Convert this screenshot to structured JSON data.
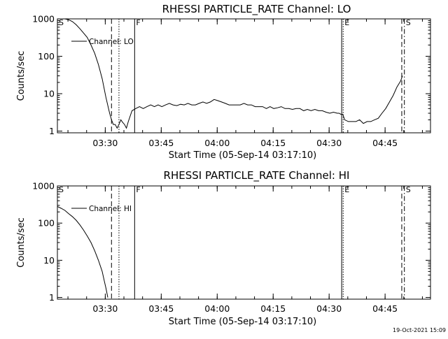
{
  "footer": {
    "timestamp": "19-Oct-2021 15:09"
  },
  "chart_data": [
    {
      "type": "line",
      "title": "RHESSI PARTICLE_RATE Channel: LO",
      "xlabel": "Start Time (05-Sep-14 03:17:10)",
      "ylabel": "Counts/sec",
      "yscale": "log",
      "ylim": [
        0.9,
        1000
      ],
      "xlim_minutes": [
        0,
        100
      ],
      "xticks": [
        "03:30",
        "03:45",
        "04:00",
        "04:15",
        "04:30",
        "04:45"
      ],
      "xtick_minutes": [
        12.83,
        27.83,
        42.83,
        57.83,
        72.83,
        87.83
      ],
      "yticks": [
        "1",
        "10",
        "100",
        "1000"
      ],
      "yticks_values": [
        1,
        10,
        100,
        1000
      ],
      "legend": {
        "label": "Channel: LO",
        "position": "top-left"
      },
      "markers": [
        {
          "label": "S",
          "x_minutes": 0,
          "style": "solid"
        },
        {
          "label": "",
          "x_minutes": 14.5,
          "style": "dashed"
        },
        {
          "label": "",
          "x_minutes": 16.5,
          "style": "dotted"
        },
        {
          "label": "F",
          "x_minutes": 20.7,
          "style": "solid"
        },
        {
          "label": "",
          "x_minutes": 76.2,
          "style": "solid"
        },
        {
          "label": "E",
          "x_minutes": 76.6,
          "style": "dotted"
        },
        {
          "label": "",
          "x_minutes": 92.3,
          "style": "dashed"
        },
        {
          "label": "S",
          "x_minutes": 93.0,
          "style": "dashdot"
        }
      ],
      "series": [
        {
          "name": "Channel: LO",
          "x": [
            0,
            2,
            3,
            4,
            5,
            6,
            7,
            8,
            9,
            10,
            11,
            12,
            13,
            14,
            14.5,
            15,
            15.5,
            16,
            16.5,
            17,
            17.5,
            18,
            18.5,
            19,
            20,
            21,
            22,
            23,
            24,
            25,
            26,
            27,
            28,
            29,
            30,
            31,
            32,
            33,
            34,
            35,
            36,
            37,
            38,
            39,
            40,
            41,
            42,
            43,
            44,
            45,
            46,
            47,
            48,
            49,
            50,
            51,
            52,
            53,
            54,
            55,
            56,
            57,
            58,
            59,
            60,
            61,
            62,
            63,
            64,
            65,
            66,
            67,
            68,
            69,
            70,
            71,
            72,
            73,
            74,
            75,
            75.5,
            76,
            76.5,
            77,
            78,
            79,
            80,
            81,
            82,
            83,
            84,
            85,
            86,
            87,
            88,
            89,
            90,
            91,
            92,
            92.5
          ],
          "y": [
            1000,
            1000,
            950,
            850,
            700,
            550,
            420,
            320,
            200,
            120,
            60,
            25,
            8,
            3,
            2,
            1.5,
            1.5,
            1.2,
            1.5,
            2,
            1.7,
            1.5,
            1.2,
            1.8,
            3.5,
            4,
            4.5,
            4,
            4.5,
            5,
            4.5,
            5,
            4.5,
            5,
            5.5,
            5,
            4.8,
            5.2,
            5,
            5.5,
            5,
            5,
            5.5,
            6,
            5.5,
            6,
            7,
            6.5,
            6,
            5.5,
            5,
            5,
            5,
            5,
            5.5,
            5,
            5,
            4.5,
            4.5,
            4.5,
            4,
            4.5,
            4,
            4.2,
            4.5,
            4,
            4,
            3.8,
            4,
            4,
            3.5,
            3.8,
            3.5,
            3.8,
            3.5,
            3.5,
            3.2,
            3,
            3.2,
            3,
            3,
            2.8,
            2.8,
            2,
            1.8,
            1.8,
            1.8,
            2,
            1.6,
            1.8,
            1.8,
            2,
            2.2,
            3,
            4,
            6,
            9,
            15,
            22,
            30
          ]
        }
      ]
    },
    {
      "type": "line",
      "title": "RHESSI PARTICLE_RATE Channel: HI",
      "xlabel": "Start Time (05-Sep-14 03:17:10)",
      "ylabel": "Counts/sec",
      "yscale": "log",
      "ylim": [
        0.9,
        1000
      ],
      "xlim_minutes": [
        0,
        100
      ],
      "xticks": [
        "03:30",
        "03:45",
        "04:00",
        "04:15",
        "04:30",
        "04:45"
      ],
      "xtick_minutes": [
        12.83,
        27.83,
        42.83,
        57.83,
        72.83,
        87.83
      ],
      "yticks": [
        "1",
        "10",
        "100",
        "1000"
      ],
      "yticks_values": [
        1,
        10,
        100,
        1000
      ],
      "legend": {
        "label": "Channel: HI",
        "position": "top-left"
      },
      "markers": [
        {
          "label": "S",
          "x_minutes": 0,
          "style": "solid"
        },
        {
          "label": "",
          "x_minutes": 14.5,
          "style": "dashed"
        },
        {
          "label": "",
          "x_minutes": 16.5,
          "style": "dotted"
        },
        {
          "label": "F",
          "x_minutes": 20.7,
          "style": "solid"
        },
        {
          "label": "",
          "x_minutes": 76.2,
          "style": "solid"
        },
        {
          "label": "E",
          "x_minutes": 76.6,
          "style": "dotted"
        },
        {
          "label": "",
          "x_minutes": 92.3,
          "style": "dashed"
        },
        {
          "label": "S",
          "x_minutes": 93.0,
          "style": "dashdot"
        }
      ],
      "series": [
        {
          "name": "Channel: HI",
          "x": [
            0,
            1,
            2,
            3,
            4,
            5,
            6,
            7,
            8,
            9,
            10,
            11,
            12,
            12.5,
            13,
            13.5
          ],
          "y": [
            280,
            250,
            220,
            180,
            150,
            120,
            90,
            65,
            45,
            30,
            18,
            10,
            5,
            3,
            1.8,
            1
          ]
        }
      ]
    }
  ]
}
